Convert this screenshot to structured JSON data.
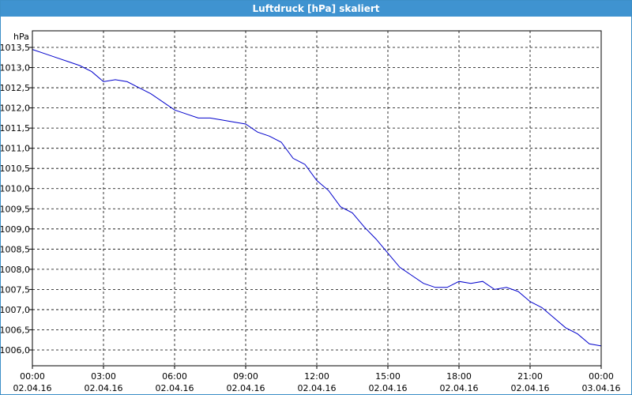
{
  "window": {
    "title": "Luftdruck [hPa] skaliert"
  },
  "chart_data": {
    "type": "line",
    "title": "Luftdruck [hPa] skaliert",
    "ylabel": "hPa",
    "xlabel": "",
    "ylim": [
      1005.8,
      1013.5
    ],
    "grid": true,
    "legend": "none",
    "y_ticks": [
      "1006,0",
      "1006,5",
      "1007,0",
      "1007,5",
      "1008,0",
      "1008,5",
      "1009,0",
      "1009,5",
      "1010,0",
      "1010,5",
      "1011,0",
      "1011,5",
      "1012,0",
      "1012,5",
      "1013,0",
      "1013,5"
    ],
    "y_tick_values": [
      1006.0,
      1006.5,
      1007.0,
      1007.5,
      1008.0,
      1008.5,
      1009.0,
      1009.5,
      1010.0,
      1010.5,
      1011.0,
      1011.5,
      1012.0,
      1012.5,
      1013.0,
      1013.5
    ],
    "x_ticks": [
      {
        "time": "00:00",
        "date": "02.04.16"
      },
      {
        "time": "03:00",
        "date": "02.04.16"
      },
      {
        "time": "06:00",
        "date": "02.04.16"
      },
      {
        "time": "09:00",
        "date": "02.04.16"
      },
      {
        "time": "12:00",
        "date": "02.04.16"
      },
      {
        "time": "15:00",
        "date": "02.04.16"
      },
      {
        "time": "18:00",
        "date": "02.04.16"
      },
      {
        "time": "21:00",
        "date": "02.04.16"
      },
      {
        "time": "00:00",
        "date": "03.04.16"
      }
    ],
    "series": [
      {
        "color": "#0000cc",
        "x": [
          "02.04.16 00:00",
          "02.04.16 00:30",
          "02.04.16 01:00",
          "02.04.16 01:30",
          "02.04.16 02:00",
          "02.04.16 02:30",
          "02.04.16 03:00",
          "02.04.16 03:30",
          "02.04.16 04:00",
          "02.04.16 04:30",
          "02.04.16 05:00",
          "02.04.16 05:30",
          "02.04.16 06:00",
          "02.04.16 06:30",
          "02.04.16 07:00",
          "02.04.16 07:30",
          "02.04.16 08:00",
          "02.04.16 08:30",
          "02.04.16 09:00",
          "02.04.16 09:30",
          "02.04.16 10:00",
          "02.04.16 10:30",
          "02.04.16 11:00",
          "02.04.16 11:30",
          "02.04.16 12:00",
          "02.04.16 12:30",
          "02.04.16 13:00",
          "02.04.16 13:30",
          "02.04.16 14:00",
          "02.04.16 14:30",
          "02.04.16 15:00",
          "02.04.16 15:30",
          "02.04.16 16:00",
          "02.04.16 16:30",
          "02.04.16 17:00",
          "02.04.16 17:30",
          "02.04.16 18:00",
          "02.04.16 18:30",
          "02.04.16 19:00",
          "02.04.16 19:30",
          "02.04.16 20:00",
          "02.04.16 20:30",
          "02.04.16 21:00",
          "02.04.16 21:30",
          "02.04.16 22:00",
          "02.04.16 22:30",
          "02.04.16 23:00",
          "02.04.16 23:30",
          "03.04.16 00:00"
        ],
        "values": [
          1013.45,
          1013.35,
          1013.25,
          1013.15,
          1013.05,
          1012.9,
          1012.65,
          1012.7,
          1012.65,
          1012.5,
          1012.35,
          1012.15,
          1011.95,
          1011.85,
          1011.75,
          1011.75,
          1011.7,
          1011.65,
          1011.6,
          1011.4,
          1011.3,
          1011.15,
          1010.75,
          1010.6,
          1010.2,
          1009.95,
          1009.55,
          1009.4,
          1009.05,
          1008.75,
          1008.4,
          1008.05,
          1007.85,
          1007.65,
          1007.55,
          1007.55,
          1007.7,
          1007.65,
          1007.7,
          1007.5,
          1007.55,
          1007.45,
          1007.2,
          1007.05,
          1006.8,
          1006.55,
          1006.4,
          1006.15,
          1006.1
        ]
      }
    ]
  }
}
